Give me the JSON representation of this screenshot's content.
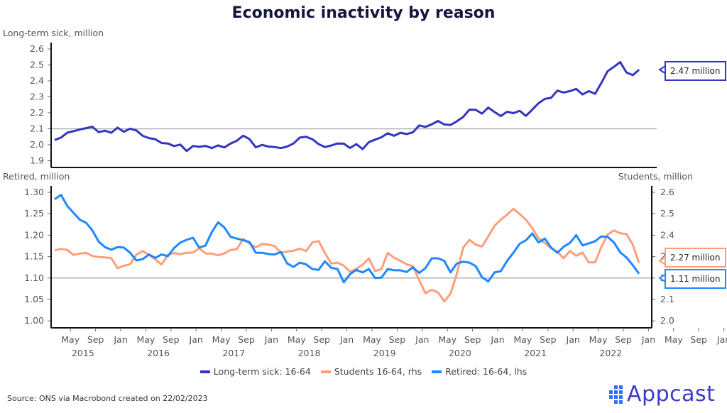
{
  "chart_data": [
    {
      "type": "line",
      "title": "Economic inactivity by reason",
      "ylabel": "Long-term sick, million",
      "ylim": [
        1.9,
        2.6
      ],
      "yticks": [
        "2.6",
        "2.5",
        "2.4",
        "2.3",
        "2.2",
        "2.1",
        "2.0",
        "1.9"
      ],
      "reference_line": 2.1,
      "callout": "2.47 million",
      "series": [
        {
          "name": "Long-term sick: 16-64",
          "color": "#3535c0",
          "values": [
            2.03,
            2.045,
            2.076,
            2.085,
            2.096,
            2.104,
            2.113,
            2.079,
            2.088,
            2.075,
            2.107,
            2.082,
            2.101,
            2.09,
            2.056,
            2.042,
            2.035,
            2.011,
            2.008,
            1.992,
            2.001,
            1.961,
            1.992,
            1.987,
            1.993,
            1.979,
            1.996,
            1.983,
            2.008,
            2.026,
            2.057,
            2.035,
            1.984,
            1.999,
            1.989,
            1.986,
            1.979,
            1.989,
            2.008,
            2.045,
            2.05,
            2.035,
            2.004,
            1.986,
            1.995,
            2.008,
            2.007,
            1.98,
            2.004,
            1.973,
            2.017,
            2.032,
            2.047,
            2.072,
            2.056,
            2.075,
            2.067,
            2.078,
            2.121,
            2.112,
            2.128,
            2.149,
            2.127,
            2.124,
            2.147,
            2.174,
            2.22,
            2.219,
            2.195,
            2.233,
            2.205,
            2.18,
            2.207,
            2.198,
            2.213,
            2.181,
            2.22,
            2.26,
            2.287,
            2.294,
            2.339,
            2.327,
            2.336,
            2.35,
            2.315,
            2.336,
            2.319,
            2.387,
            2.461,
            2.488,
            2.518,
            2.453,
            2.436,
            2.47
          ]
        }
      ]
    },
    {
      "type": "line",
      "ylabel_left": "Retired, million",
      "ylabel_right": "Students, million",
      "ylim_left": [
        1.0,
        1.3
      ],
      "ylim_right": [
        2.0,
        2.6
      ],
      "yticks_left": [
        "1.30",
        "1.25",
        "1.20",
        "1.15",
        "1.10",
        "1.05",
        "1.00"
      ],
      "yticks_right": [
        "2.6",
        "2.5",
        "2.4",
        "2.3",
        "2.2",
        "2.1",
        "2.0"
      ],
      "reference_line_left": 1.1,
      "series": [
        {
          "name": "Students 16-64, rhs",
          "axis": "right",
          "color": "#ff9e7a",
          "callout": "2.27 million",
          "values": [
            2.329,
            2.336,
            2.331,
            2.308,
            2.314,
            2.318,
            2.303,
            2.298,
            2.296,
            2.293,
            2.246,
            2.257,
            2.264,
            2.309,
            2.326,
            2.308,
            2.288,
            2.263,
            2.308,
            2.317,
            2.311,
            2.318,
            2.319,
            2.339,
            2.315,
            2.314,
            2.306,
            2.315,
            2.331,
            2.335,
            2.383,
            2.361,
            2.343,
            2.359,
            2.356,
            2.349,
            2.317,
            2.324,
            2.327,
            2.337,
            2.326,
            2.366,
            2.373,
            2.317,
            2.268,
            2.272,
            2.258,
            2.229,
            2.243,
            2.262,
            2.292,
            2.232,
            2.242,
            2.317,
            2.295,
            2.281,
            2.264,
            2.256,
            2.19,
            2.129,
            2.145,
            2.133,
            2.091,
            2.127,
            2.22,
            2.341,
            2.378,
            2.356,
            2.347,
            2.394,
            2.444,
            2.472,
            2.496,
            2.523,
            2.499,
            2.472,
            2.433,
            2.385,
            2.363,
            2.339,
            2.323,
            2.292,
            2.326,
            2.304,
            2.319,
            2.273,
            2.273,
            2.345,
            2.403,
            2.422,
            2.409,
            2.405,
            2.356,
            2.27
          ]
        },
        {
          "name": "Retired: 16-64, lhs",
          "axis": "left",
          "color": "#1e88ff",
          "callout": "1.11 million",
          "values": [
            1.284,
            1.294,
            1.268,
            1.252,
            1.236,
            1.229,
            1.211,
            1.185,
            1.172,
            1.166,
            1.172,
            1.171,
            1.159,
            1.141,
            1.144,
            1.155,
            1.147,
            1.155,
            1.151,
            1.17,
            1.183,
            1.189,
            1.194,
            1.171,
            1.176,
            1.207,
            1.23,
            1.218,
            1.196,
            1.192,
            1.188,
            1.184,
            1.159,
            1.159,
            1.156,
            1.155,
            1.161,
            1.134,
            1.126,
            1.136,
            1.132,
            1.121,
            1.119,
            1.139,
            1.124,
            1.121,
            1.09,
            1.109,
            1.119,
            1.113,
            1.121,
            1.1,
            1.101,
            1.121,
            1.118,
            1.118,
            1.114,
            1.125,
            1.112,
            1.123,
            1.146,
            1.146,
            1.14,
            1.113,
            1.134,
            1.138,
            1.136,
            1.128,
            1.102,
            1.092,
            1.113,
            1.116,
            1.14,
            1.159,
            1.18,
            1.188,
            1.204,
            1.183,
            1.192,
            1.171,
            1.159,
            1.173,
            1.182,
            1.2,
            1.176,
            1.181,
            1.186,
            1.197,
            1.196,
            1.183,
            1.16,
            1.148,
            1.13,
            1.11
          ]
        }
      ]
    }
  ],
  "dates": [
    "2015-02",
    "2015-03",
    "2015-04",
    "2015-05",
    "2015-06",
    "2015-07",
    "2015-08",
    "2015-09",
    "2015-10",
    "2015-11",
    "2015-12",
    "2016-01",
    "2016-02",
    "2016-03",
    "2016-04",
    "2016-05",
    "2016-06",
    "2016-07",
    "2016-08",
    "2016-09",
    "2016-10",
    "2016-11",
    "2016-12",
    "2017-01",
    "2017-02",
    "2017-03",
    "2017-04",
    "2017-05",
    "2017-06",
    "2017-07",
    "2017-08",
    "2017-09",
    "2017-10",
    "2017-11",
    "2017-12",
    "2018-01",
    "2018-02",
    "2018-03",
    "2018-04",
    "2018-05",
    "2018-06",
    "2018-07",
    "2018-08",
    "2018-09",
    "2018-10",
    "2018-11",
    "2018-12",
    "2019-01",
    "2019-02",
    "2019-03",
    "2019-04",
    "2019-05",
    "2019-06",
    "2019-07",
    "2019-08",
    "2019-09",
    "2019-10",
    "2019-11",
    "2019-12",
    "2020-01",
    "2020-02",
    "2020-03",
    "2020-04",
    "2020-05",
    "2020-06",
    "2020-07",
    "2020-08",
    "2020-09",
    "2020-10",
    "2020-11",
    "2020-12",
    "2021-01",
    "2021-02",
    "2021-03",
    "2021-04",
    "2021-05",
    "2021-06",
    "2021-07",
    "2021-08",
    "2021-09",
    "2021-10",
    "2021-11",
    "2021-12",
    "2022-01",
    "2022-02",
    "2022-03",
    "2022-04",
    "2022-05",
    "2022-06",
    "2022-07",
    "2022-08",
    "2022-09",
    "2022-10",
    "2022-11"
  ],
  "x_month_ticks": [
    "May",
    "Sep",
    "Jan",
    "May",
    "Sep",
    "Jan",
    "May",
    "Sep",
    "Jan",
    "May",
    "Sep",
    "Jan",
    "May",
    "Sep",
    "Jan",
    "May",
    "Sep",
    "Jan",
    "May",
    "Sep",
    "Jan",
    "May",
    "Sep",
    "Jan",
    "May",
    "Sep",
    "Jan"
  ],
  "x_year_ticks": [
    "2015",
    "2016",
    "2017",
    "2018",
    "2019",
    "2020",
    "2021",
    "2022"
  ],
  "legend": [
    "Long-term sick: 16-64",
    "Students 16-64, rhs",
    "Retired: 16-64, lhs"
  ],
  "source": "Source: ONS via Macrobond created on 22/02/2023",
  "logo": "Appcast",
  "colors": {
    "title": "#14163f",
    "sick": "#3535c0",
    "students": "#ff9e7a",
    "retired": "#1e88ff",
    "grid": "#b0b0b0"
  }
}
